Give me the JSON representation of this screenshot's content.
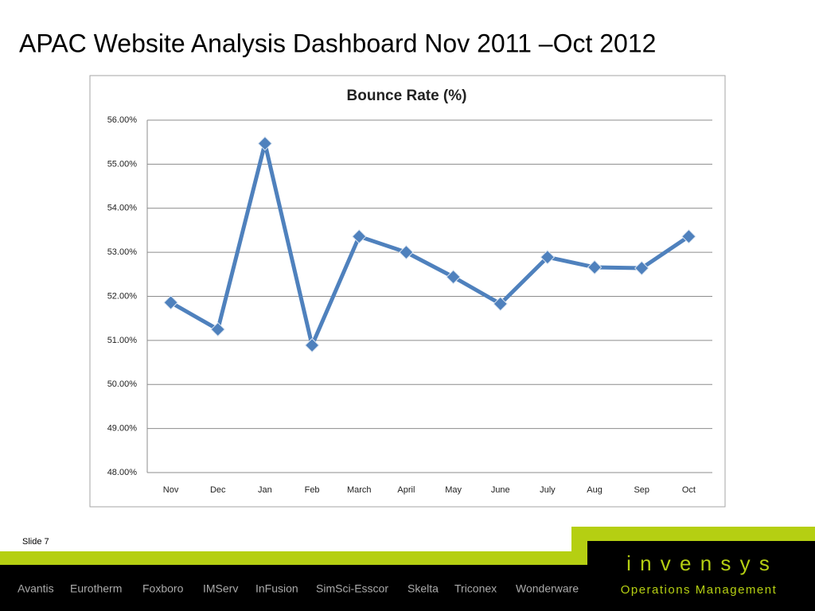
{
  "slide_title": "APAC Website Analysis Dashboard Nov 2011 –Oct 2012",
  "slide_number": "Slide 7",
  "footer_brands": [
    "Avantis",
    "Eurotherm",
    "Foxboro",
    "IMServ",
    "InFusion",
    "SimSci-Esscor",
    "Skelta",
    "Triconex",
    "Wonderware"
  ],
  "logo": "i n v e n s y s",
  "logo_subtitle": "Operations Management",
  "chart_data": {
    "type": "line",
    "title": "Bounce Rate (%)",
    "categories": [
      "Nov",
      "Dec",
      "Jan",
      "Feb",
      "March",
      "April",
      "May",
      "June",
      "July",
      "Aug",
      "Sep",
      "Oct"
    ],
    "values": [
      51.86,
      51.25,
      55.47,
      50.89,
      53.36,
      53.0,
      52.44,
      51.83,
      52.89,
      52.66,
      52.64,
      53.36
    ],
    "color": "#4f81bd",
    "ylim": [
      48,
      56
    ],
    "yticks": [
      {
        "value": 48,
        "label": "48.00%"
      },
      {
        "value": 49,
        "label": "49.00%"
      },
      {
        "value": 50,
        "label": "50.00%"
      },
      {
        "value": 51,
        "label": "51.00%"
      },
      {
        "value": 52,
        "label": "52.00%"
      },
      {
        "value": 53,
        "label": "53.00%"
      },
      {
        "value": 54,
        "label": "54.00%"
      },
      {
        "value": 55,
        "label": "55.00%"
      },
      {
        "value": 56,
        "label": "56.00%"
      }
    ],
    "grid": true
  }
}
